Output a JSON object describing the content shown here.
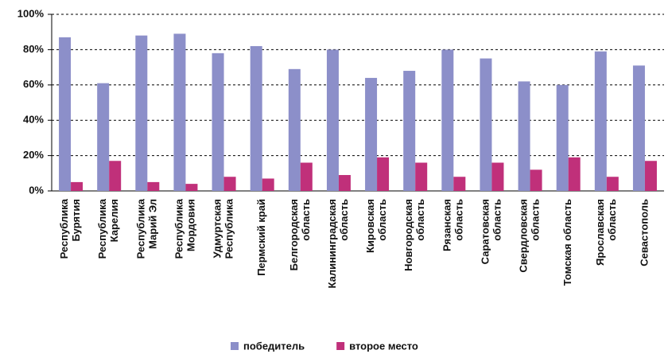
{
  "chart_data": {
    "type": "bar",
    "categories": [
      [
        "Республика",
        "Бурятия"
      ],
      [
        "Республика",
        "Карелия"
      ],
      [
        "Республика",
        "Марий Эл"
      ],
      [
        "Республика",
        "Мордовия"
      ],
      [
        "Удмуртская",
        "Республика"
      ],
      [
        "Пермский край"
      ],
      [
        "Белгородская",
        "область"
      ],
      [
        "Калининградская",
        "область"
      ],
      [
        "Кировская",
        "область"
      ],
      [
        "Новгородская",
        "область"
      ],
      [
        "Рязанская",
        "область"
      ],
      [
        "Саратовская",
        "область"
      ],
      [
        "Свердловская",
        "область"
      ],
      [
        "Томская область"
      ],
      [
        "Ярославская",
        "область"
      ],
      [
        "Севастополь"
      ]
    ],
    "series": [
      {
        "name": "победитель",
        "color": "#8c8fc9",
        "values": [
          87,
          61,
          88,
          89,
          78,
          82,
          69,
          80,
          64,
          68,
          80,
          75,
          62,
          60,
          79,
          71
        ]
      },
      {
        "name": "второе место",
        "color": "#c0307a",
        "values": [
          5,
          17,
          5,
          4,
          8,
          7,
          16,
          9,
          19,
          16,
          8,
          16,
          12,
          19,
          8,
          17
        ]
      }
    ],
    "ylim": [
      0,
      100
    ],
    "yticks": [
      {
        "value": 0,
        "label": "0%"
      },
      {
        "value": 20,
        "label": "20%"
      },
      {
        "value": 40,
        "label": "40%"
      },
      {
        "value": 60,
        "label": "60%"
      },
      {
        "value": 80,
        "label": "80%"
      },
      {
        "value": 100,
        "label": "100%"
      }
    ],
    "grid": true,
    "legend": "bottom"
  }
}
